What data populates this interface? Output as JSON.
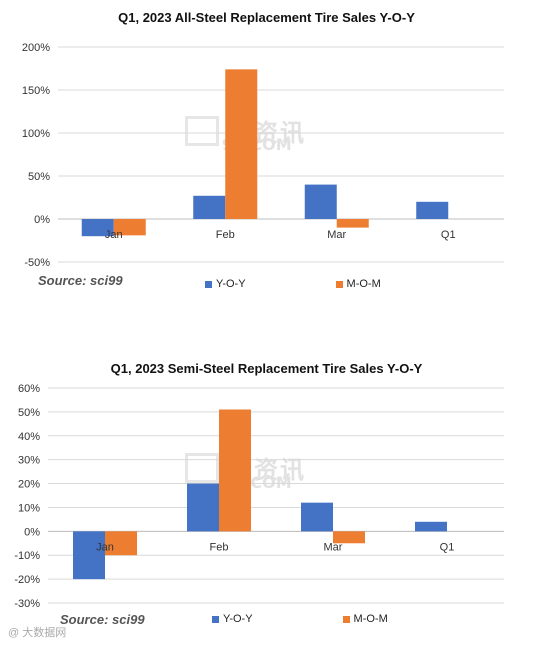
{
  "chart_data": [
    {
      "type": "bar",
      "title": "Q1, 2023  All-Steel Replacement Tire Sales Y-O-Y",
      "categories": [
        "Jan",
        "Feb",
        "Mar",
        "Q1"
      ],
      "series": [
        {
          "name": "Y-O-Y",
          "color": "#4472C4",
          "values": [
            -20,
            27,
            40,
            20
          ]
        },
        {
          "name": "M-O-M",
          "color": "#ED7D31",
          "values": [
            -19,
            174,
            -10,
            null
          ]
        }
      ],
      "ylim": [
        -50,
        200
      ],
      "yticks": [
        -50,
        0,
        50,
        100,
        150,
        200
      ],
      "tick_format": "{v}%",
      "grid": true,
      "legend": "bottom",
      "source": "Source: sci99"
    },
    {
      "type": "bar",
      "title": "Q1, 2023  Semi-Steel Replacement Tire Sales Y-O-Y",
      "categories": [
        "Jan",
        "Feb",
        "Mar",
        "Q1"
      ],
      "series": [
        {
          "name": "Y-O-Y",
          "color": "#4472C4",
          "values": [
            -20,
            20,
            12,
            4
          ]
        },
        {
          "name": "M-O-M",
          "color": "#ED7D31",
          "values": [
            -10,
            51,
            -5,
            null
          ]
        }
      ],
      "ylim": [
        -30,
        60
      ],
      "yticks": [
        -30,
        -20,
        -10,
        0,
        10,
        20,
        30,
        40,
        50,
        60
      ],
      "tick_format": "{v}%",
      "grid": true,
      "legend": "bottom",
      "source": "Source: sci99"
    }
  ],
  "watermark": {
    "text": "创资讯",
    "sub": "99.COM"
  },
  "corner_mark": "@ 大数据网"
}
